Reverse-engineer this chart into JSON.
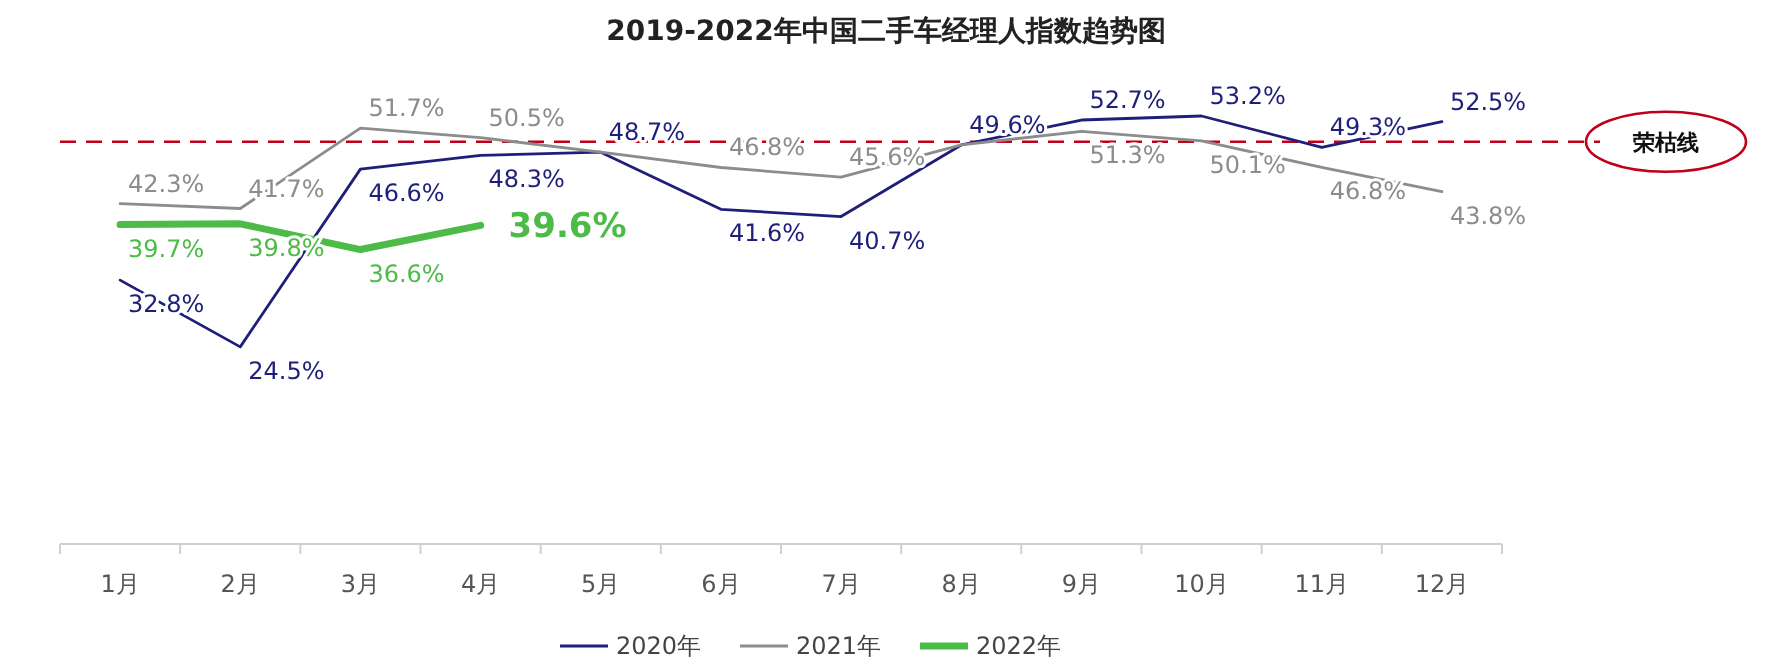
{
  "chart_data": {
    "type": "line",
    "title": "2019-2022年中国二手车经理人指数趋势图",
    "categories": [
      "1月",
      "2月",
      "3月",
      "4月",
      "5月",
      "6月",
      "7月",
      "8月",
      "9月",
      "10月",
      "11月",
      "12月"
    ],
    "series": [
      {
        "name": "2020年",
        "color": "#1f1f7a",
        "values": [
          32.8,
          24.5,
          46.6,
          48.3,
          48.7,
          41.6,
          40.7,
          49.6,
          52.7,
          53.2,
          49.3,
          52.5
        ],
        "value_labels": [
          "32.8%",
          "24.5%",
          "46.6%",
          "48.3%",
          "48.7%",
          "41.6%",
          "40.7%",
          "49.6%",
          "52.7%",
          "53.2%",
          "49.3%",
          "52.5%"
        ]
      },
      {
        "name": "2021年",
        "color": "#8c8c8c",
        "values": [
          42.3,
          41.7,
          51.7,
          50.5,
          48.7,
          46.8,
          45.6,
          49.6,
          51.3,
          50.1,
          46.8,
          43.8
        ],
        "value_labels": [
          "42.3%",
          "41.7%",
          "51.7%",
          "50.5%",
          null,
          "46.8%",
          "45.6%",
          null,
          "51.3%",
          "50.1%",
          "46.8%",
          "43.8%"
        ]
      },
      {
        "name": "2022年",
        "color": "#4cbb47",
        "values": [
          39.7,
          39.8,
          36.6,
          39.6,
          null,
          null,
          null,
          null,
          null,
          null,
          null,
          null
        ],
        "value_labels": [
          "39.7%",
          "39.8%",
          "36.6%",
          "39.6%",
          null,
          null,
          null,
          null,
          null,
          null,
          null,
          null
        ]
      }
    ],
    "tick_labels": "x",
    "grid": false,
    "legend": "bottom",
    "ref_lines": [
      {
        "axis": "y",
        "value": 50,
        "label": "荣枯线",
        "color": "#c0001a",
        "line_style": "dashed"
      }
    ]
  }
}
